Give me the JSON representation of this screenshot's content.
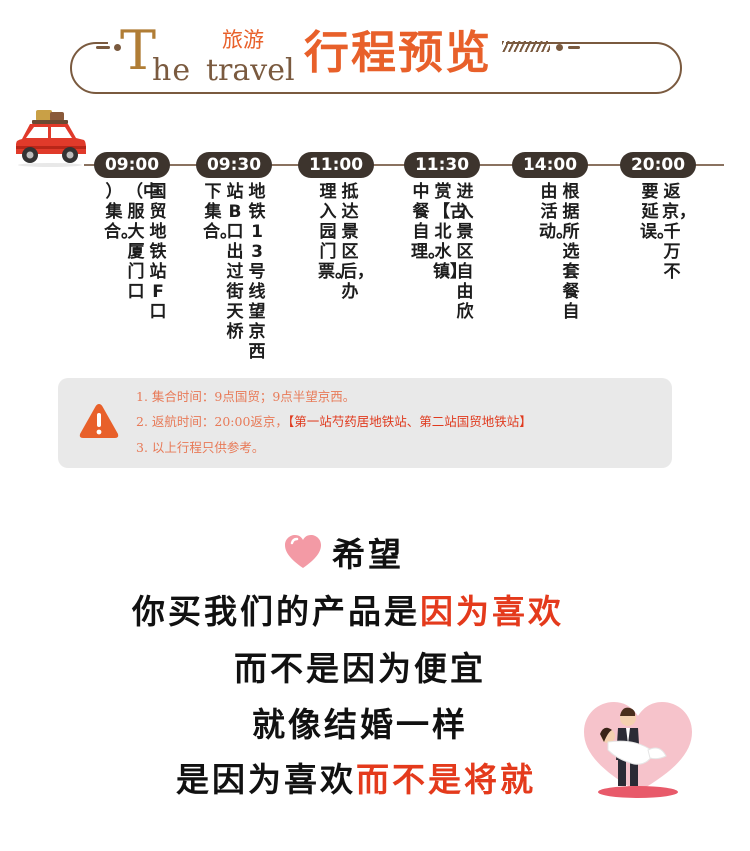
{
  "header": {
    "t_letter": "T",
    "he": "he",
    "travel": "travel",
    "lvyou": "旅游",
    "title": "行程预览"
  },
  "timeline": {
    "items": [
      {
        "time": "09:00",
        "cols": [
          "国贸地铁站F口",
          "（中服大厦门口",
          "）集合。"
        ]
      },
      {
        "time": "09:30",
        "cols": [
          "地铁13号线望京西",
          "站B口出过街天桥",
          "下集合。"
        ]
      },
      {
        "time": "11:00",
        "cols": [
          "抵达景区后，办",
          "理入园门票。"
        ]
      },
      {
        "time": "11:30",
        "cols": [
          "进入景区自由欣",
          "赏【古北水镇】",
          "中餐自理。"
        ]
      },
      {
        "time": "14:00",
        "cols": [
          "根据所选套餐自",
          "由活动。"
        ]
      },
      {
        "time": "20:00",
        "cols": [
          "返京，千万不",
          "要延误。"
        ]
      }
    ]
  },
  "notice": {
    "line1": "1. 集合时间：9点国贸；9点半望京西。",
    "line2_prefix": "2. 返航时间：20:00返京，",
    "line2_highlight": "【第一站芍药居地铁站、第二站国贸地铁站】",
    "line3": "3. 以上行程只供参考。"
  },
  "slogan": {
    "hope": "希望",
    "line1_prefix": "你买我们的产品是",
    "line1_highlight": "因为喜欢",
    "line2": "而不是因为便宜",
    "line3": "就像结婚一样",
    "line4_prefix": "是因为喜欢",
    "line4_highlight": "而不是将就"
  },
  "colors": {
    "accent_orange": "#e8602a",
    "frame_brown": "#7a5a3f",
    "pill_dark": "#3d342d",
    "highlight_yellow": "#f7f13a",
    "highlight_red": "#e43a1c"
  },
  "icons": [
    "car-icon",
    "warning-icon",
    "heart-icon",
    "couple-illustration"
  ]
}
